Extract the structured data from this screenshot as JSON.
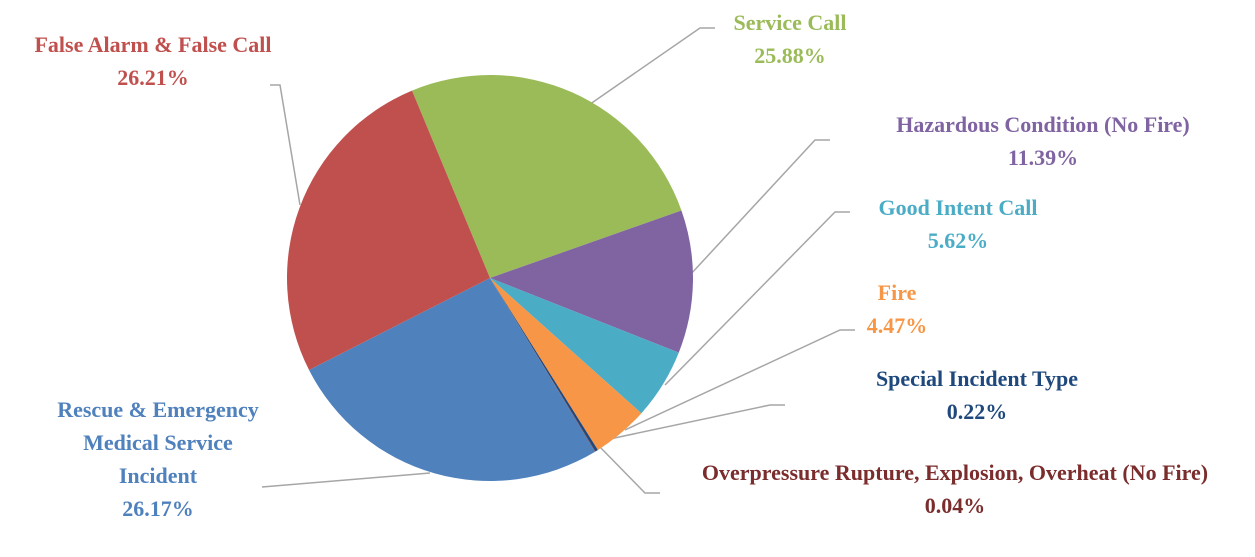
{
  "chart_data": {
    "type": "pie",
    "categories": [
      "Service Call",
      "Hazardous Condition (No Fire)",
      "Good Intent Call",
      "Fire",
      "Special Incident Type",
      "Overpressure Rupture, Explosion, Overheat (No Fire)",
      "Rescue & Emergency Medical Service Incident",
      "False Alarm & False Call"
    ],
    "values": [
      25.88,
      11.39,
      5.62,
      4.47,
      0.22,
      0.04,
      26.17,
      26.21
    ],
    "value_labels": [
      "25.88%",
      "11.39%",
      "5.62%",
      "4.47%",
      "0.22%",
      "0.04%",
      "26.17%",
      "26.21%"
    ],
    "colors": [
      "#9bbb59",
      "#8064a2",
      "#4bacc6",
      "#f79646",
      "#1f497d",
      "#7b2c2c",
      "#4f81bd",
      "#c0504d"
    ]
  }
}
